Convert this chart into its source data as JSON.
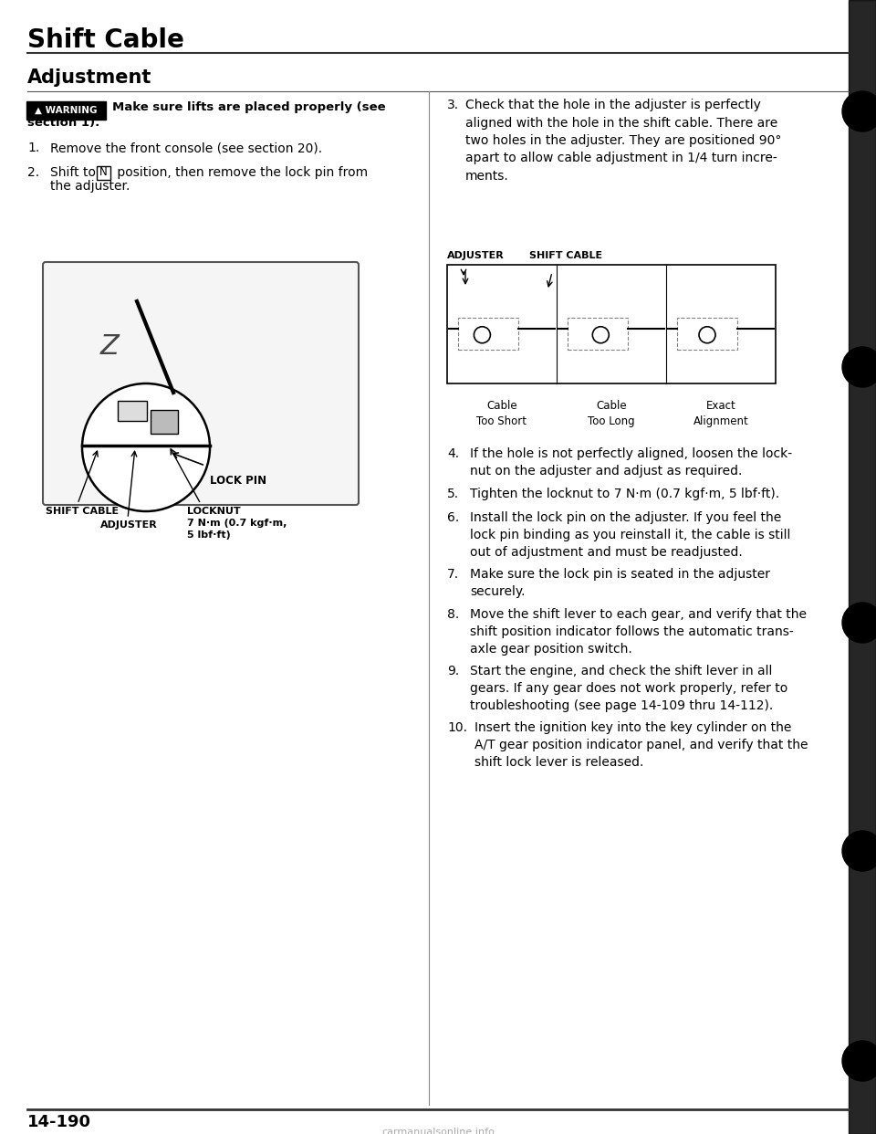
{
  "page_title": "Shift Cable",
  "section_title": "Adjustment",
  "warning_text": "Make sure lifts are placed properly (see\nsection 1).",
  "step1": "Remove the front console (see section 20).",
  "step2": "Shift to Ⓝ position, then remove the lock pin from\nthe adjuster.",
  "step3_title": "3.",
  "step3": "Check that the hole in the adjuster is perfectly\naligned with the hole in the shift cable. There are\ntwo holes in the adjuster. They are positioned 90°\napart to allow cable adjustment in 1/4 turn incre-\nments.",
  "step4": "If the hole is not perfectly aligned, loosen the lock-\nnut on the adjuster and adjust as required.",
  "step5": "Tighten the locknut to 7 N·m (0.7 kgf·m, 5 lbf·ft).",
  "step6": "Install the lock pin on the adjuster. If you feel the\nlock pin binding as you reinstall it, the cable is still\nout of adjustment and must be readjusted.",
  "step7": "Make sure the lock pin is seated in the adjuster\nsecurely.",
  "step8": "Move the shift lever to each gear, and verify that the\nshift position indicator follows the automatic trans-\naxle gear position switch.",
  "step9": "Start the engine, and check the shift lever in all\ngears. If any gear does not work properly, refer to\ntroubleshooting (see page 14-109 thru 14-112).",
  "step10": "Insert the ignition key into the key cylinder on the\nA/T gear position indicator panel, and verify that the\nshift lock lever is released.",
  "diagram_label_adjuster": "ADJUSTER",
  "diagram_label_shift_cable": "SHIFT CABLE",
  "diagram_caption1": "Cable\nToo Short",
  "diagram_caption2": "Cable\nToo Long",
  "diagram_caption3": "Exact\nAlignment",
  "label_lock_pin": "LOCK PIN",
  "label_shift_cable": "SHIFT CABLE",
  "label_adjuster": "ADJUSTER",
  "label_locknut": "LOCKNUT\n7 N·m (0.7 kgf·m,\n5 lbf·ft)",
  "page_number": "14-190",
  "bg_color": "#ffffff",
  "text_color": "#000000",
  "divider_color": "#000000"
}
